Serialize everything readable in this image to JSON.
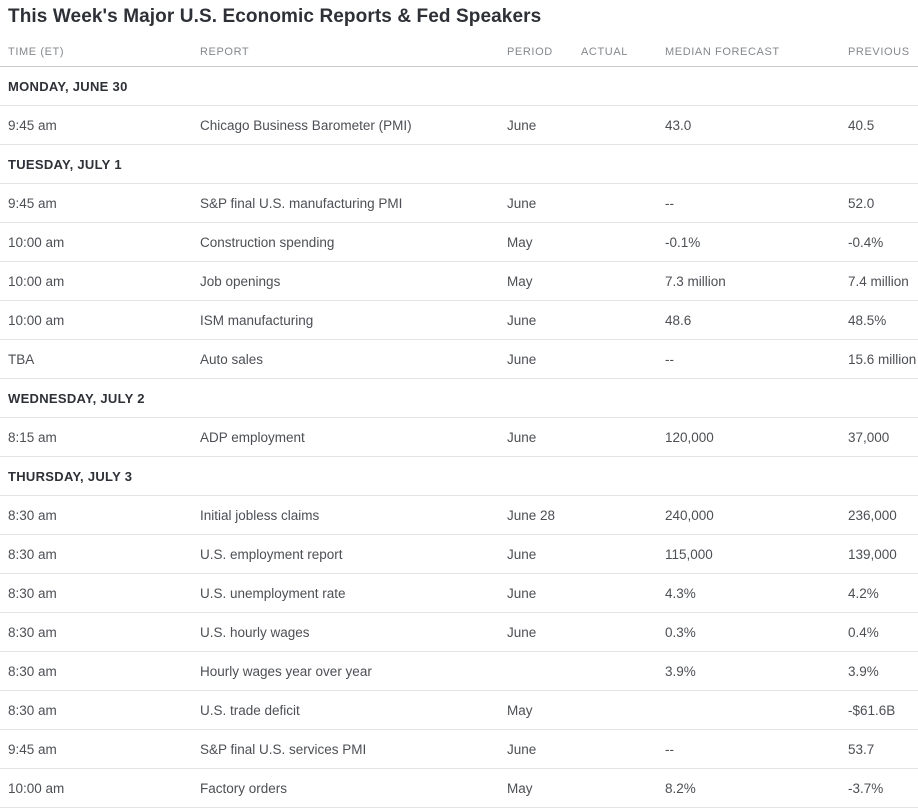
{
  "title": "This Week's Major U.S. Economic Reports & Fed Speakers",
  "table": {
    "columns": [
      "TIME (ET)",
      "REPORT",
      "PERIOD",
      "ACTUAL",
      "MEDIAN FORECAST",
      "PREVIOUS"
    ],
    "groups": [
      {
        "day": "MONDAY, JUNE 30",
        "rows": [
          {
            "time": "9:45 am",
            "report": "Chicago Business Barometer (PMI)",
            "period": "June",
            "actual": "",
            "forecast": "43.0",
            "previous": "40.5"
          }
        ]
      },
      {
        "day": "TUESDAY, JULY 1",
        "rows": [
          {
            "time": "9:45 am",
            "report": "S&P final U.S. manufacturing PMI",
            "period": "June",
            "actual": "",
            "forecast": "--",
            "previous": "52.0"
          },
          {
            "time": "10:00 am",
            "report": "Construction spending",
            "period": "May",
            "actual": "",
            "forecast": "-0.1%",
            "previous": "-0.4%"
          },
          {
            "time": "10:00 am",
            "report": "Job openings",
            "period": "May",
            "actual": "",
            "forecast": "7.3 million",
            "previous": "7.4 million"
          },
          {
            "time": "10:00 am",
            "report": "ISM manufacturing",
            "period": "June",
            "actual": "",
            "forecast": "48.6",
            "previous": "48.5%"
          },
          {
            "time": "TBA",
            "report": "Auto sales",
            "period": "June",
            "actual": "",
            "forecast": "--",
            "previous": "15.6 million"
          }
        ]
      },
      {
        "day": "WEDNESDAY, JULY 2",
        "rows": [
          {
            "time": "8:15 am",
            "report": "ADP employment",
            "period": "June",
            "actual": "",
            "forecast": "120,000",
            "previous": "37,000"
          }
        ]
      },
      {
        "day": "THURSDAY, JULY 3",
        "rows": [
          {
            "time": "8:30 am",
            "report": "Initial jobless claims",
            "period": "June 28",
            "actual": "",
            "forecast": "240,000",
            "previous": "236,000"
          },
          {
            "time": "8:30 am",
            "report": "U.S. employment report",
            "period": "June",
            "actual": "",
            "forecast": "115,000",
            "previous": "139,000"
          },
          {
            "time": "8:30 am",
            "report": "U.S. unemployment rate",
            "period": "June",
            "actual": "",
            "forecast": "4.3%",
            "previous": "4.2%"
          },
          {
            "time": "8:30 am",
            "report": "U.S. hourly wages",
            "period": "June",
            "actual": "",
            "forecast": "0.3%",
            "previous": "0.4%"
          },
          {
            "time": "8:30 am",
            "report": "Hourly wages year over year",
            "period": "",
            "actual": "",
            "forecast": "3.9%",
            "previous": "3.9%"
          },
          {
            "time": "8:30 am",
            "report": "U.S. trade deficit",
            "period": "May",
            "actual": "",
            "forecast": "",
            "previous": "-$61.6B"
          },
          {
            "time": "9:45 am",
            "report": "S&P final U.S. services PMI",
            "period": "June",
            "actual": "",
            "forecast": "--",
            "previous": "53.7"
          },
          {
            "time": "10:00 am",
            "report": "Factory orders",
            "period": "May",
            "actual": "",
            "forecast": "8.2%",
            "previous": "-3.7%"
          }
        ]
      }
    ]
  },
  "colors": {
    "title_text": "#2d3036",
    "header_text": "#85888d",
    "body_text": "#4c4f54",
    "day_text": "#2d3036",
    "divider": "#e4e4e4",
    "header_divider": "#c9cacc",
    "background": "#ffffff"
  }
}
